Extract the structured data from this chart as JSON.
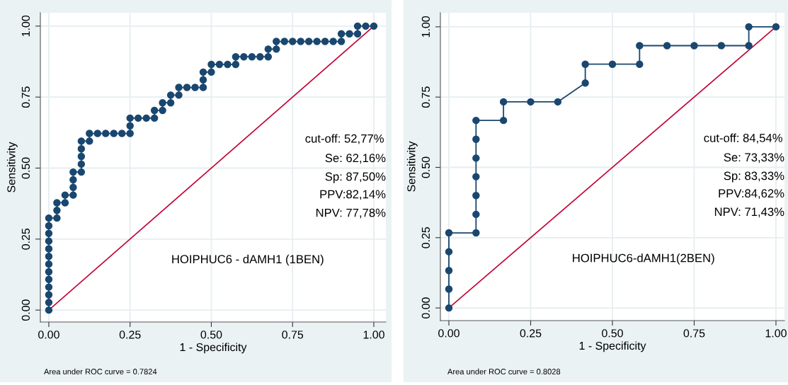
{
  "chart_data": [
    {
      "type": "line",
      "xlabel": "1 - Specificity",
      "ylabel": "Sensitivity",
      "xlim": [
        -0.026,
        1.037
      ],
      "ylim": [
        -0.042,
        1.047
      ],
      "xticks": [
        {
          "value": 0,
          "label": "0.00"
        },
        {
          "value": 0.25,
          "label": "0.25"
        },
        {
          "value": 0.5,
          "label": "0.50"
        },
        {
          "value": 0.75,
          "label": "0.75"
        },
        {
          "value": 1,
          "label": "1.00"
        }
      ],
      "yticks": [
        {
          "value": 0,
          "label": "0.00"
        },
        {
          "value": 0.25,
          "label": "0.25"
        },
        {
          "value": 0.5,
          "label": "0.50"
        },
        {
          "value": 0.75,
          "label": "0.75"
        },
        {
          "value": 1,
          "label": "1.00"
        }
      ],
      "grid": true,
      "legend": false,
      "series": [
        {
          "color": "#1a476f",
          "marker": "circle",
          "x": [
            0,
            0,
            0,
            0,
            0,
            0,
            0,
            0,
            0,
            0,
            0,
            0,
            0,
            0.025,
            0.025,
            0.025,
            0.05,
            0.05,
            0.075,
            0.075,
            0.075,
            0.075,
            0.1,
            0.1,
            0.1,
            0.1,
            0.1,
            0.125,
            0.125,
            0.15,
            0.175,
            0.2,
            0.225,
            0.25,
            0.25,
            0.25,
            0.275,
            0.3,
            0.325,
            0.325,
            0.35,
            0.35,
            0.375,
            0.375,
            0.4,
            0.4,
            0.425,
            0.45,
            0.475,
            0.475,
            0.475,
            0.5,
            0.5,
            0.525,
            0.55,
            0.575,
            0.575,
            0.6,
            0.625,
            0.65,
            0.675,
            0.675,
            0.7,
            0.7,
            0.725,
            0.75,
            0.775,
            0.8,
            0.825,
            0.85,
            0.875,
            0.9,
            0.9,
            0.925,
            0.95,
            0.95,
            0.975,
            1
          ],
          "values": [
            0,
            0.027,
            0.054,
            0.081,
            0.108,
            0.135,
            0.162,
            0.189,
            0.216,
            0.243,
            0.27,
            0.297,
            0.324,
            0.324,
            0.351,
            0.378,
            0.378,
            0.405,
            0.405,
            0.432,
            0.459,
            0.486,
            0.486,
            0.514,
            0.541,
            0.568,
            0.595,
            0.595,
            0.622,
            0.622,
            0.622,
            0.622,
            0.622,
            0.622,
            0.649,
            0.676,
            0.676,
            0.676,
            0.676,
            0.703,
            0.703,
            0.73,
            0.73,
            0.757,
            0.757,
            0.784,
            0.784,
            0.784,
            0.784,
            0.811,
            0.838,
            0.838,
            0.865,
            0.865,
            0.865,
            0.865,
            0.892,
            0.892,
            0.892,
            0.892,
            0.892,
            0.919,
            0.919,
            0.946,
            0.946,
            0.946,
            0.946,
            0.946,
            0.946,
            0.946,
            0.946,
            0.946,
            0.973,
            0.973,
            0.973,
            1,
            1,
            1
          ]
        },
        {
          "color": "#c10534",
          "marker": "none",
          "x": [
            0,
            1
          ],
          "values": [
            0,
            1
          ]
        }
      ],
      "annotations": [
        "cut-off: 52,77%",
        "Se: 62,16%",
        "Sp: 87,50%",
        "PPV:82,14%",
        "NPV: 77,78%",
        "HOIPHUC6 - dAMH1 (1BEN)",
        "Area under ROC curve = 0.7824"
      ]
    },
    {
      "type": "line",
      "xlabel": "1 - Specificity",
      "ylabel": "Sensitivity",
      "xlim": [
        -0.026,
        1.026
      ],
      "ylim": [
        -0.045,
        1.05
      ],
      "xticks": [
        {
          "value": 0,
          "label": "0.00"
        },
        {
          "value": 0.25,
          "label": "0.25"
        },
        {
          "value": 0.5,
          "label": "0.50"
        },
        {
          "value": 0.75,
          "label": "0.75"
        },
        {
          "value": 1,
          "label": "1.00"
        }
      ],
      "yticks": [
        {
          "value": 0,
          "label": "0.00"
        },
        {
          "value": 0.25,
          "label": "0.25"
        },
        {
          "value": 0.5,
          "label": "0.50"
        },
        {
          "value": 0.75,
          "label": "0.75"
        },
        {
          "value": 1,
          "label": "1.00"
        }
      ],
      "grid": true,
      "legend": false,
      "series": [
        {
          "color": "#1a476f",
          "marker": "circle",
          "x": [
            0,
            0,
            0,
            0,
            0,
            0.083,
            0.083,
            0.083,
            0.083,
            0.083,
            0.083,
            0.083,
            0.167,
            0.167,
            0.25,
            0.333,
            0.417,
            0.417,
            0.5,
            0.583,
            0.583,
            0.667,
            0.75,
            0.833,
            0.917,
            0.917,
            1
          ],
          "values": [
            0,
            0.067,
            0.133,
            0.2,
            0.267,
            0.267,
            0.333,
            0.4,
            0.467,
            0.533,
            0.6,
            0.667,
            0.667,
            0.733,
            0.733,
            0.733,
            0.8,
            0.867,
            0.867,
            0.867,
            0.933,
            0.933,
            0.933,
            0.933,
            0.933,
            1,
            1
          ]
        },
        {
          "color": "#c10534",
          "marker": "none",
          "x": [
            0,
            1
          ],
          "values": [
            0,
            1
          ]
        }
      ],
      "annotations": [
        "cut-off: 84,54%",
        "Se: 73,33%",
        "Sp: 83,33%",
        "PPV:84,62%",
        "NPV: 71,43%",
        "HOIPHUC6-dAMH1(2BEN)",
        "Area under ROC curve = 0.8028"
      ]
    }
  ]
}
